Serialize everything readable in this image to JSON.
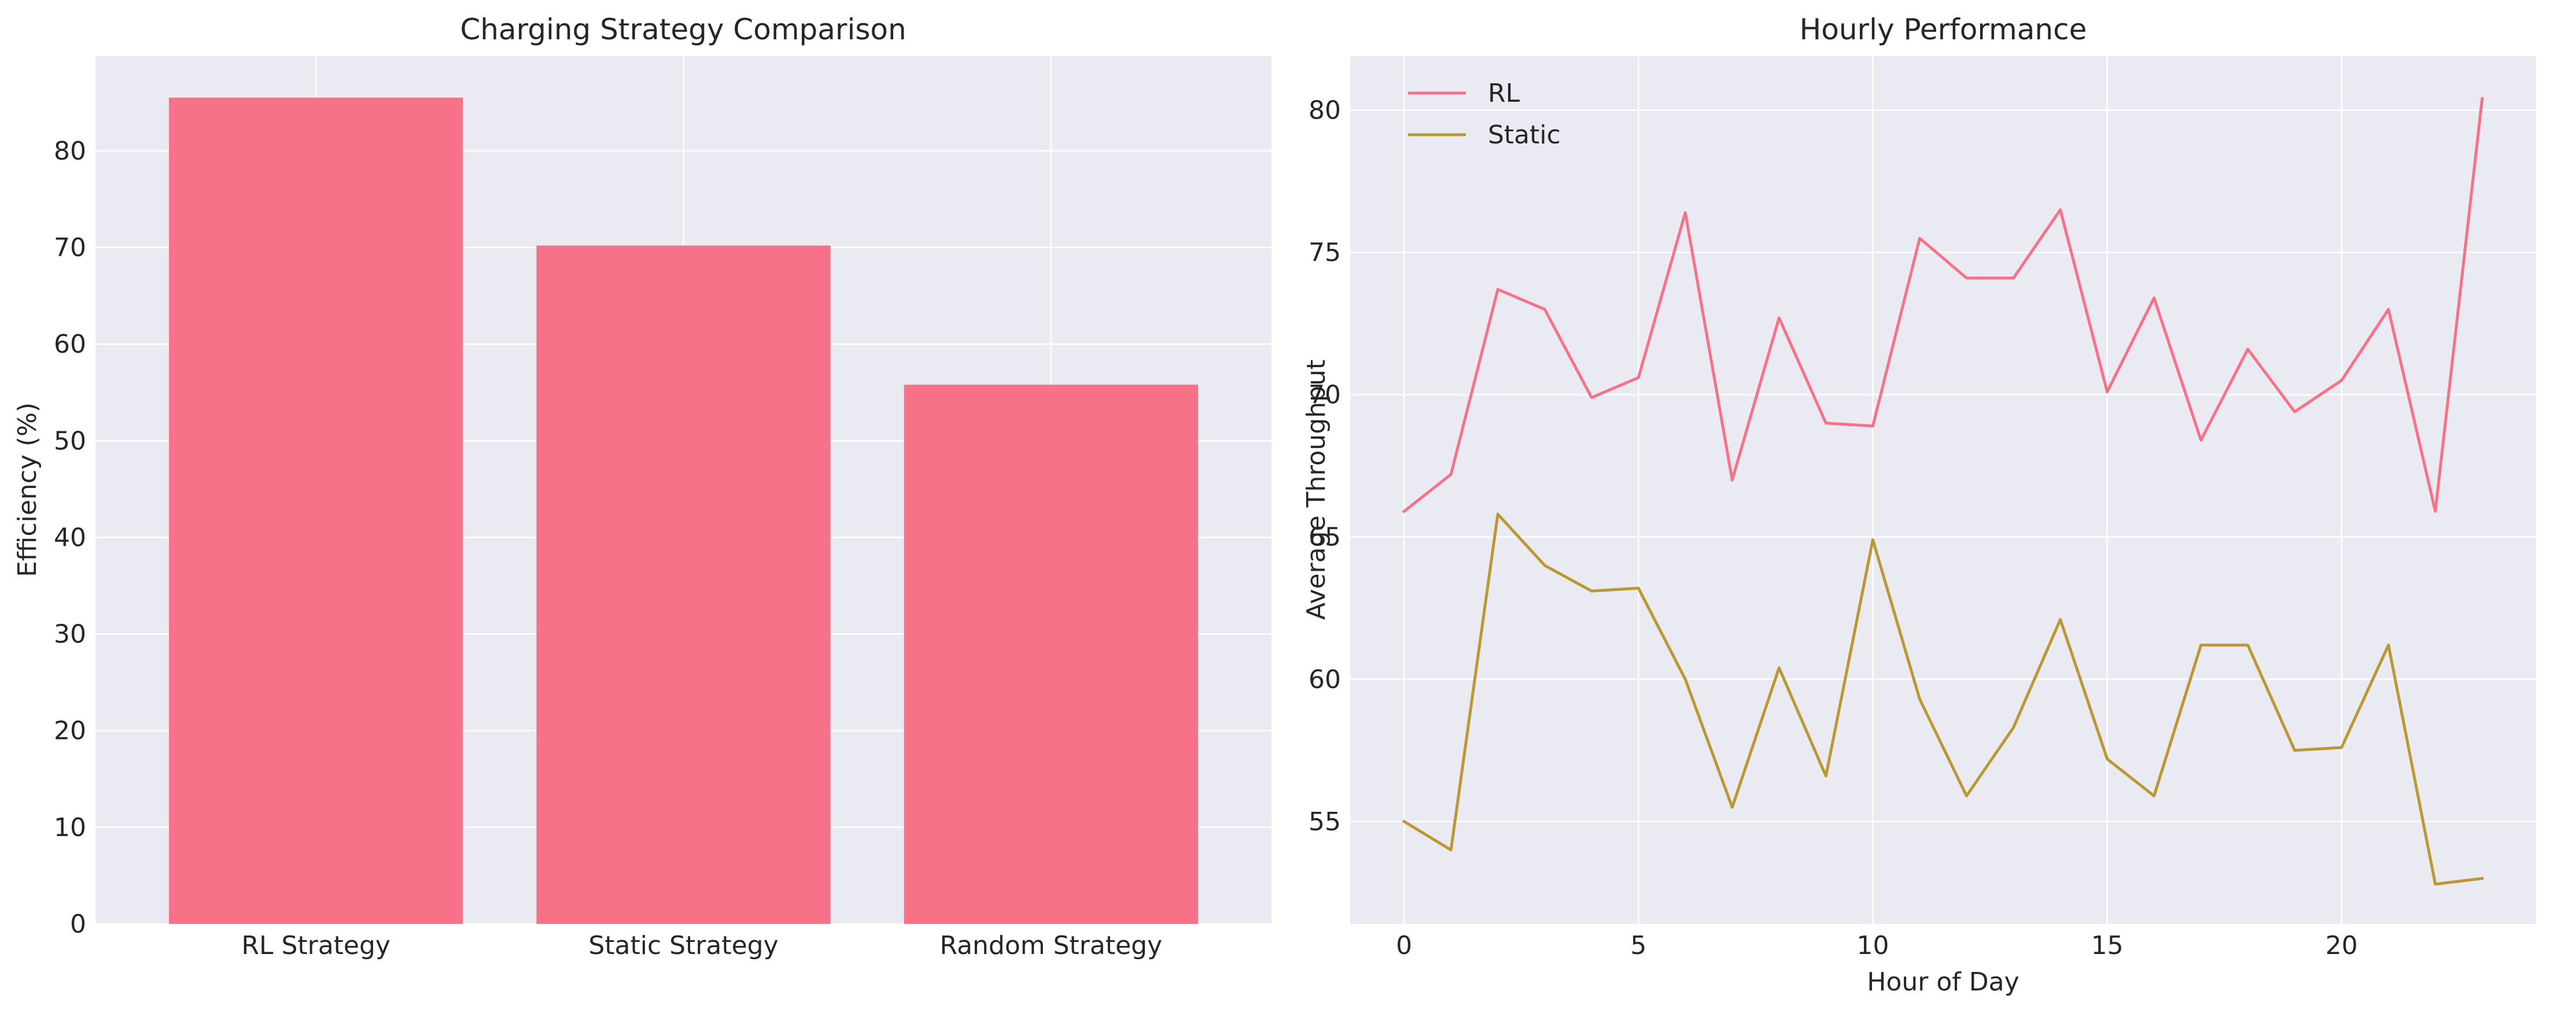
{
  "chart_data": [
    {
      "type": "bar",
      "title": "Charging Strategy Comparison",
      "xlabel": "",
      "ylabel": "Efficiency (%)",
      "categories": [
        "RL Strategy",
        "Static Strategy",
        "Random Strategy"
      ],
      "values": [
        85.5,
        70.2,
        55.8
      ],
      "ylim": [
        0,
        89.8
      ],
      "yticks": [
        0,
        10,
        20,
        30,
        40,
        50,
        60,
        70,
        80
      ],
      "color": "#f77189",
      "grid": true
    },
    {
      "type": "line",
      "title": "Hourly Performance",
      "xlabel": "Hour of Day",
      "ylabel": "Average Throughput",
      "x": [
        0,
        1,
        2,
        3,
        4,
        5,
        6,
        7,
        8,
        9,
        10,
        11,
        12,
        13,
        14,
        15,
        16,
        17,
        18,
        19,
        20,
        21,
        22,
        23
      ],
      "xlim": [
        -1.15,
        24.15
      ],
      "xticks": [
        0,
        5,
        10,
        15,
        20
      ],
      "ylim": [
        51.4,
        81.9
      ],
      "yticks": [
        55,
        60,
        65,
        70,
        75,
        80
      ],
      "legend_position": "top-left",
      "grid": true,
      "series": [
        {
          "name": "RL",
          "color": "#f77189",
          "values": [
            65.9,
            67.2,
            73.7,
            73.0,
            69.9,
            70.6,
            76.4,
            67.0,
            72.7,
            69.0,
            68.9,
            75.5,
            74.1,
            74.1,
            76.5,
            70.1,
            73.4,
            68.4,
            71.6,
            69.4,
            70.5,
            73.0,
            65.9,
            80.4
          ]
        },
        {
          "name": "Static",
          "color": "#bb9832",
          "values": [
            55.0,
            54.0,
            65.8,
            64.0,
            63.1,
            63.2,
            60.0,
            55.5,
            60.4,
            56.6,
            64.9,
            59.3,
            55.9,
            58.3,
            62.1,
            57.2,
            55.9,
            61.2,
            61.2,
            57.5,
            57.6,
            61.2,
            52.8,
            53.0
          ]
        }
      ]
    }
  ],
  "colors": {
    "plot_background": "#eaeaf2",
    "grid": "#ffffff",
    "text": "#262626"
  }
}
